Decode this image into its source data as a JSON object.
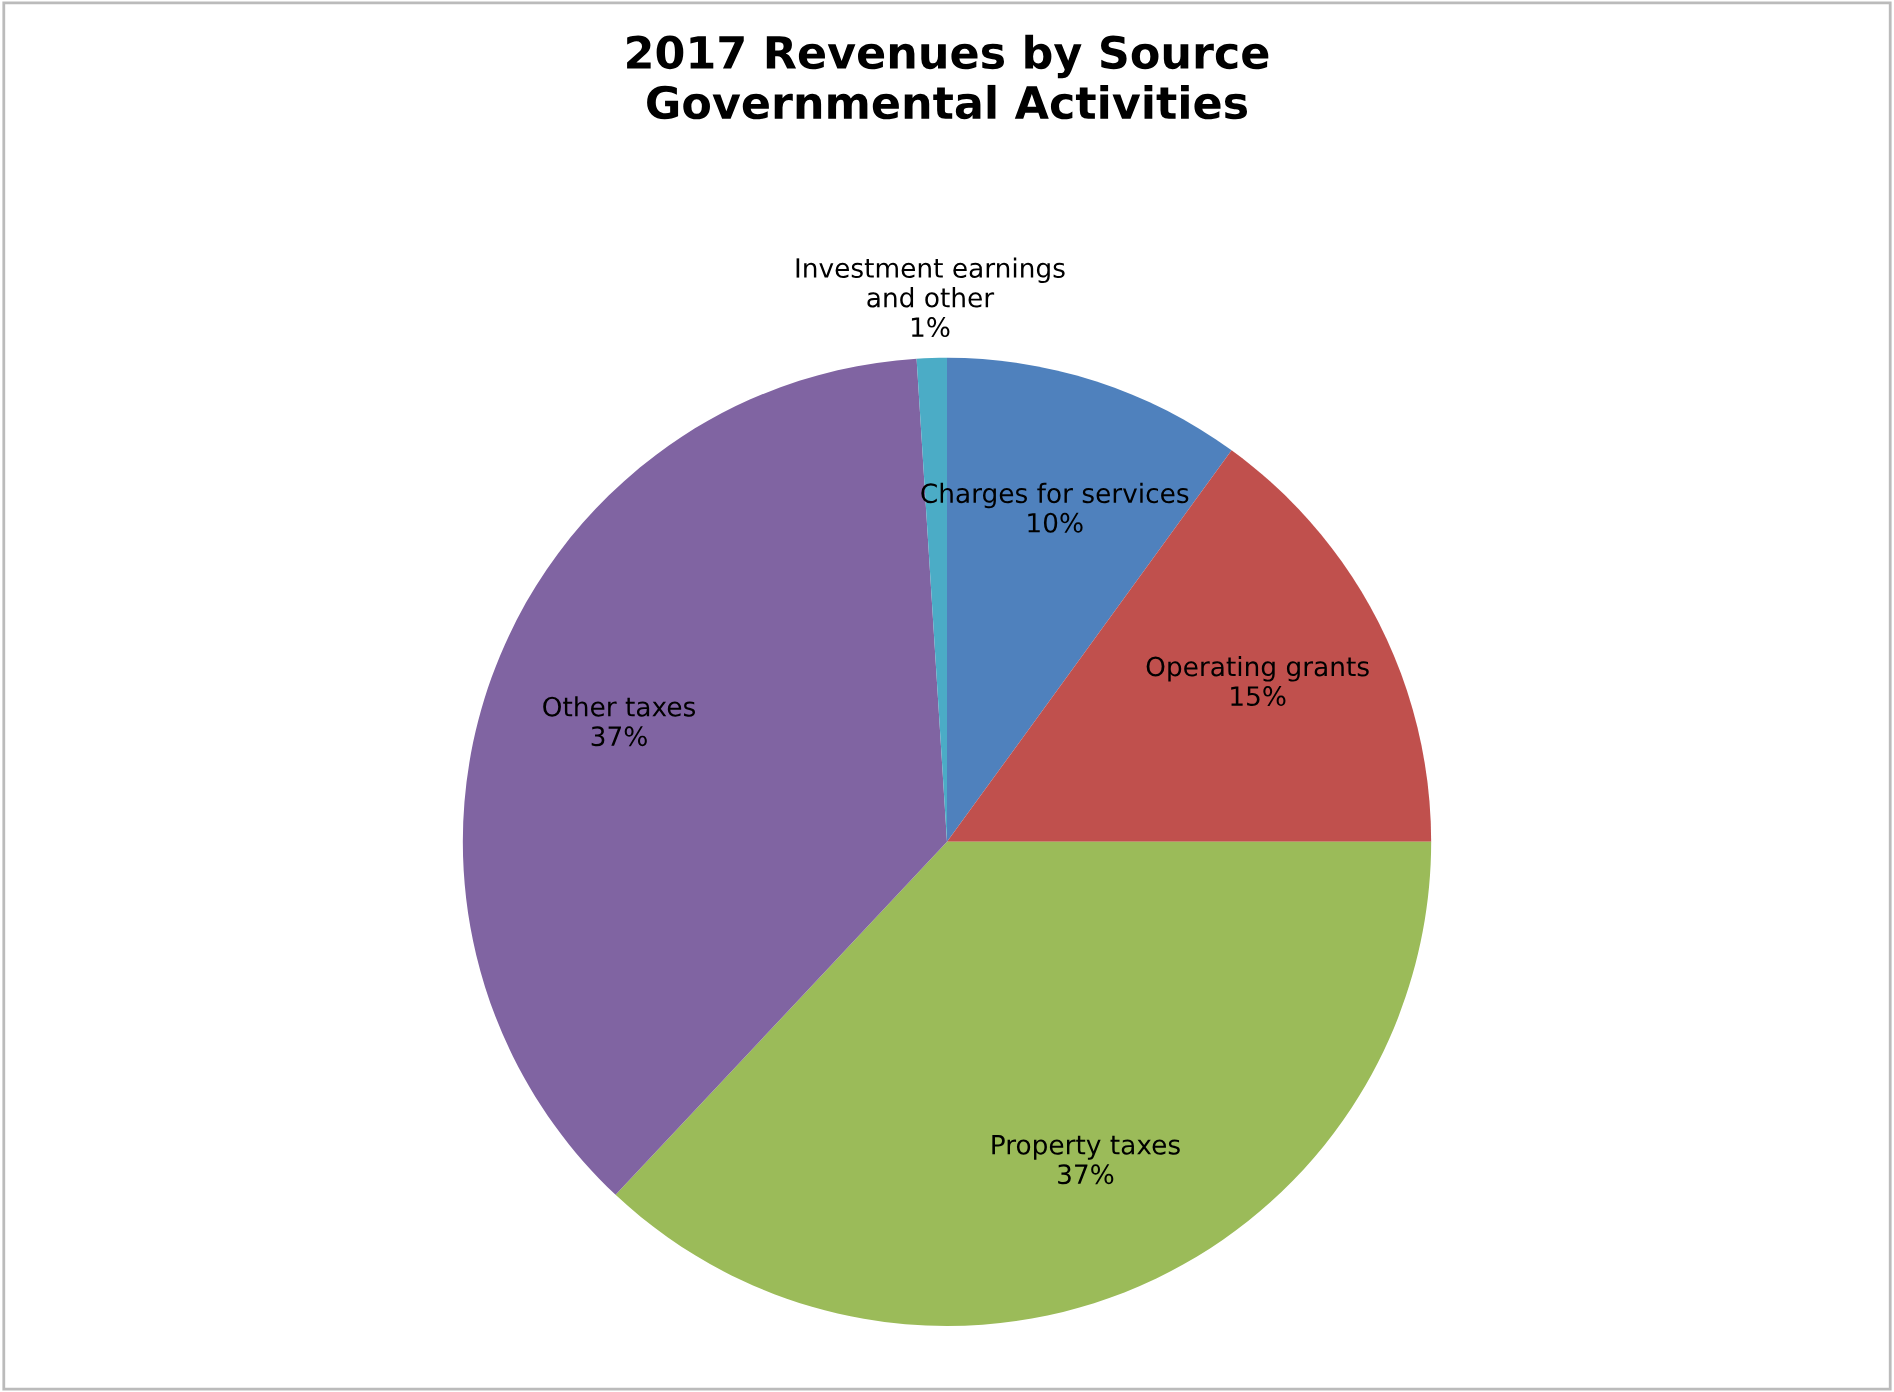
{
  "chart_data": {
    "type": "pie",
    "title": "2017 Revenues by Source\nGovernmental Activities",
    "categories": [
      "Charges for services",
      "Operating grants",
      "Property taxes",
      "Other taxes",
      "Investment earnings\nand other"
    ],
    "values": [
      10,
      15,
      37,
      37,
      1
    ],
    "colors": [
      "#4f81bd",
      "#c0504d",
      "#9bbb59",
      "#8064a2",
      "#4bacc6"
    ],
    "value_labels": [
      "10%",
      "15%",
      "37%",
      "37%",
      "1%"
    ],
    "legend": false
  }
}
